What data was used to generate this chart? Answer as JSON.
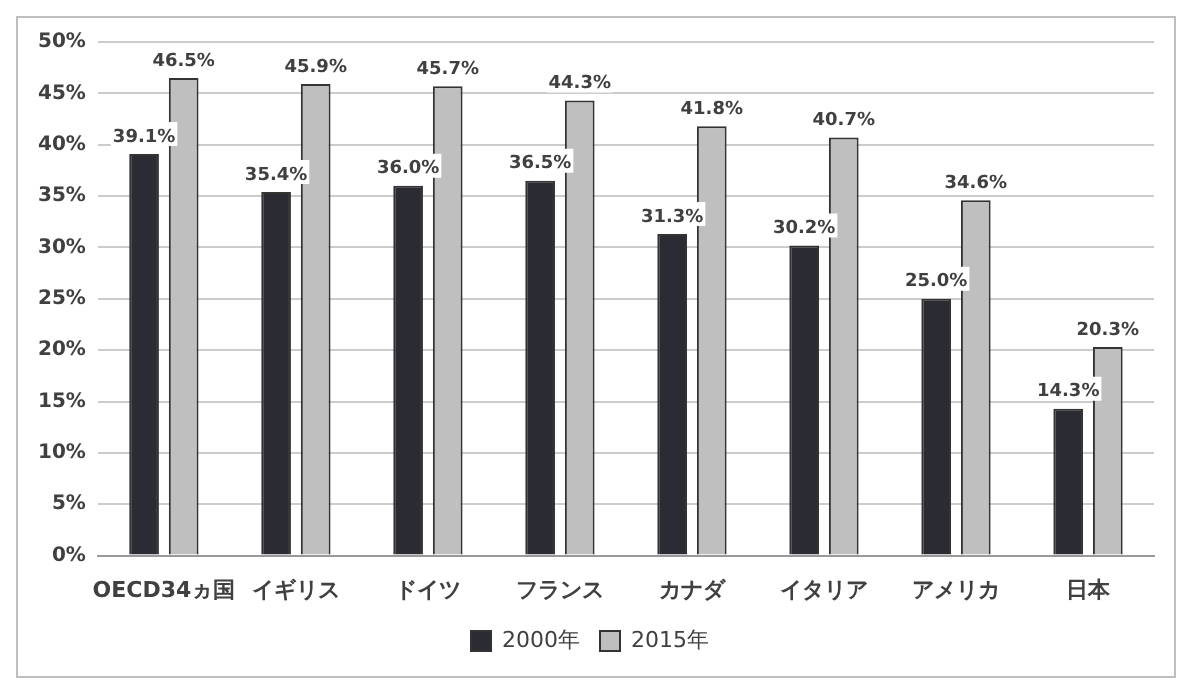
{
  "chart_data": {
    "type": "bar",
    "categories": [
      "OECD34ヵ国",
      "イギリス",
      "ドイツ",
      "フランス",
      "カナダ",
      "イタリア",
      "アメリカ",
      "日本"
    ],
    "series": [
      {
        "name": "2000年",
        "color": "#2b2b33",
        "values": [
          39.1,
          35.4,
          36.0,
          36.5,
          31.3,
          30.2,
          25.0,
          14.3
        ],
        "value_labels": [
          "39.1%",
          "35.4%",
          "36.0%",
          "36.5%",
          "31.3%",
          "30.2%",
          "25.0%",
          "14.3%"
        ]
      },
      {
        "name": "2015年",
        "color": "#bfbfbf",
        "values": [
          46.5,
          45.9,
          45.7,
          44.3,
          41.8,
          40.7,
          34.6,
          20.3
        ],
        "value_labels": [
          "46.5%",
          "45.9%",
          "45.7%",
          "44.3%",
          "41.8%",
          "40.7%",
          "34.6%",
          "20.3%"
        ]
      }
    ],
    "ylim": [
      0,
      50
    ],
    "yticks": [
      {
        "value": 0,
        "label": "0%"
      },
      {
        "value": 5,
        "label": "5%"
      },
      {
        "value": 10,
        "label": "10%"
      },
      {
        "value": 15,
        "label": "15%"
      },
      {
        "value": 20,
        "label": "20%"
      },
      {
        "value": 25,
        "label": "25%"
      },
      {
        "value": 30,
        "label": "30%"
      },
      {
        "value": 35,
        "label": "35%"
      },
      {
        "value": 40,
        "label": "40%"
      },
      {
        "value": 45,
        "label": "45%"
      },
      {
        "value": 50,
        "label": "50%"
      }
    ],
    "grid": "y",
    "legend": "bottom"
  }
}
